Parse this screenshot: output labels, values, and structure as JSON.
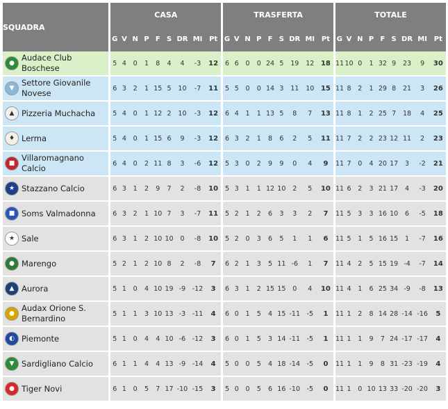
{
  "header": {
    "squadra": "SQUADRA",
    "groups": [
      "CASA",
      "TRASFERTA",
      "TOTALE"
    ],
    "columns": [
      "G",
      "V",
      "N",
      "P",
      "F",
      "S",
      "DR",
      "MI",
      "Pt"
    ]
  },
  "rows": [
    {
      "team": "Audace Club Boschese",
      "zone": "green",
      "logo": {
        "icon": "team-crest-icon",
        "color": "#2e8b3a",
        "glyph": "●"
      },
      "casa": [
        "5",
        "4",
        "0",
        "1",
        "8",
        "4",
        "4",
        "-3",
        "12"
      ],
      "trasferta": [
        "6",
        "6",
        "0",
        "0",
        "24",
        "5",
        "19",
        "12",
        "18"
      ],
      "totale": [
        "11",
        "10",
        "0",
        "1",
        "32",
        "9",
        "23",
        "9",
        "30"
      ]
    },
    {
      "team": "Settore Giovanile Novese",
      "zone": "blue",
      "logo": {
        "icon": "shield-crest-icon",
        "color": "#8cb8d8",
        "glyph": "▼"
      },
      "casa": [
        "6",
        "3",
        "2",
        "1",
        "15",
        "5",
        "10",
        "-7",
        "11"
      ],
      "trasferta": [
        "5",
        "5",
        "0",
        "0",
        "14",
        "3",
        "11",
        "10",
        "15"
      ],
      "totale": [
        "11",
        "8",
        "2",
        "1",
        "29",
        "8",
        "21",
        "3",
        "26"
      ]
    },
    {
      "team": "Pizzeria Muchacha",
      "zone": "blue",
      "logo": {
        "icon": "team-crest-icon",
        "color": "#f2f2f2",
        "glyph": "▲"
      },
      "casa": [
        "5",
        "4",
        "0",
        "1",
        "12",
        "2",
        "10",
        "-3",
        "12"
      ],
      "trasferta": [
        "6",
        "4",
        "1",
        "1",
        "13",
        "5",
        "8",
        "7",
        "13"
      ],
      "totale": [
        "11",
        "8",
        "1",
        "2",
        "25",
        "7",
        "18",
        "4",
        "25"
      ]
    },
    {
      "team": "Lerma",
      "zone": "blue",
      "logo": {
        "icon": "team-crest-icon",
        "color": "#f5f0e6",
        "glyph": "♦"
      },
      "casa": [
        "5",
        "4",
        "0",
        "1",
        "15",
        "6",
        "9",
        "-3",
        "12"
      ],
      "trasferta": [
        "6",
        "3",
        "2",
        "1",
        "8",
        "6",
        "2",
        "5",
        "11"
      ],
      "totale": [
        "11",
        "7",
        "2",
        "2",
        "23",
        "12",
        "11",
        "2",
        "23"
      ]
    },
    {
      "team": "Villaromagnano Calcio",
      "zone": "blue",
      "logo": {
        "icon": "shield-crest-icon",
        "color": "#c0282d",
        "glyph": "■"
      },
      "casa": [
        "6",
        "4",
        "0",
        "2",
        "11",
        "8",
        "3",
        "-6",
        "12"
      ],
      "trasferta": [
        "5",
        "3",
        "0",
        "2",
        "9",
        "9",
        "0",
        "4",
        "9"
      ],
      "totale": [
        "11",
        "7",
        "0",
        "4",
        "20",
        "17",
        "3",
        "-2",
        "21"
      ]
    },
    {
      "team": "Stazzano Calcio",
      "zone": "grey",
      "logo": {
        "icon": "team-crest-icon",
        "color": "#1f3f8a",
        "glyph": "★"
      },
      "casa": [
        "6",
        "3",
        "1",
        "2",
        "9",
        "7",
        "2",
        "-8",
        "10"
      ],
      "trasferta": [
        "5",
        "3",
        "1",
        "1",
        "12",
        "10",
        "2",
        "5",
        "10"
      ],
      "totale": [
        "11",
        "6",
        "2",
        "3",
        "21",
        "17",
        "4",
        "-3",
        "20"
      ]
    },
    {
      "team": "Soms Valmadonna",
      "zone": "grey",
      "logo": {
        "icon": "team-crest-icon",
        "color": "#2a56b8",
        "glyph": "■"
      },
      "casa": [
        "6",
        "3",
        "2",
        "1",
        "10",
        "7",
        "3",
        "-7",
        "11"
      ],
      "trasferta": [
        "5",
        "2",
        "1",
        "2",
        "6",
        "3",
        "3",
        "2",
        "7"
      ],
      "totale": [
        "11",
        "5",
        "3",
        "3",
        "16",
        "10",
        "6",
        "-5",
        "18"
      ]
    },
    {
      "team": "Sale",
      "zone": "grey",
      "logo": {
        "icon": "star-icon",
        "color": "#ffffff",
        "glyph": "★"
      },
      "casa": [
        "6",
        "3",
        "1",
        "2",
        "10",
        "10",
        "0",
        "-8",
        "10"
      ],
      "trasferta": [
        "5",
        "2",
        "0",
        "3",
        "6",
        "5",
        "1",
        "1",
        "6"
      ],
      "totale": [
        "11",
        "5",
        "1",
        "5",
        "16",
        "15",
        "1",
        "-7",
        "16"
      ]
    },
    {
      "team": "Marengo",
      "zone": "grey",
      "logo": {
        "icon": "team-crest-icon",
        "color": "#2d7a3a",
        "glyph": "●"
      },
      "casa": [
        "5",
        "2",
        "1",
        "2",
        "10",
        "8",
        "2",
        "-8",
        "7"
      ],
      "trasferta": [
        "6",
        "2",
        "1",
        "3",
        "5",
        "11",
        "-6",
        "1",
        "7"
      ],
      "totale": [
        "11",
        "4",
        "2",
        "5",
        "15",
        "19",
        "-4",
        "-7",
        "14"
      ]
    },
    {
      "team": "Aurora",
      "zone": "grey",
      "logo": {
        "icon": "shield-crest-icon",
        "color": "#1d3f7a",
        "glyph": "▲"
      },
      "casa": [
        "5",
        "1",
        "0",
        "4",
        "10",
        "19",
        "-9",
        "-12",
        "3"
      ],
      "trasferta": [
        "6",
        "3",
        "1",
        "2",
        "15",
        "15",
        "0",
        "4",
        "10"
      ],
      "totale": [
        "11",
        "4",
        "1",
        "6",
        "25",
        "34",
        "-9",
        "-8",
        "13"
      ]
    },
    {
      "team": "Audax Orione S. Bernardino",
      "zone": "grey",
      "logo": {
        "icon": "team-crest-icon",
        "color": "#d9a400",
        "glyph": "●"
      },
      "casa": [
        "5",
        "1",
        "1",
        "3",
        "10",
        "13",
        "-3",
        "-11",
        "4"
      ],
      "trasferta": [
        "6",
        "0",
        "1",
        "5",
        "4",
        "15",
        "-11",
        "-5",
        "1"
      ],
      "totale": [
        "11",
        "1",
        "2",
        "8",
        "14",
        "28",
        "-14",
        "-16",
        "5"
      ]
    },
    {
      "team": "Piemonte",
      "zone": "grey",
      "logo": {
        "icon": "team-crest-icon",
        "color": "#1e4aa0",
        "glyph": "◐"
      },
      "casa": [
        "5",
        "1",
        "0",
        "4",
        "4",
        "10",
        "-6",
        "-12",
        "3"
      ],
      "trasferta": [
        "6",
        "0",
        "1",
        "5",
        "3",
        "14",
        "-11",
        "-5",
        "1"
      ],
      "totale": [
        "11",
        "1",
        "1",
        "9",
        "7",
        "24",
        "-17",
        "-17",
        "4"
      ]
    },
    {
      "team": "Sardigliano Calcio",
      "zone": "grey",
      "logo": {
        "icon": "shield-crest-icon",
        "color": "#2e8b3a",
        "glyph": "▼"
      },
      "casa": [
        "6",
        "1",
        "1",
        "4",
        "4",
        "13",
        "-9",
        "-14",
        "4"
      ],
      "trasferta": [
        "5",
        "0",
        "0",
        "5",
        "4",
        "18",
        "-14",
        "-5",
        "0"
      ],
      "totale": [
        "11",
        "1",
        "1",
        "9",
        "8",
        "31",
        "-23",
        "-19",
        "4"
      ]
    },
    {
      "team": "Tiger Novi",
      "zone": "grey",
      "logo": {
        "icon": "team-crest-icon",
        "color": "#d42a2a",
        "glyph": "●"
      },
      "casa": [
        "6",
        "1",
        "0",
        "5",
        "7",
        "17",
        "-10",
        "-15",
        "3"
      ],
      "trasferta": [
        "5",
        "0",
        "0",
        "5",
        "6",
        "16",
        "-10",
        "-5",
        "0"
      ],
      "totale": [
        "11",
        "1",
        "0",
        "10",
        "13",
        "33",
        "-20",
        "-20",
        "3"
      ]
    }
  ]
}
